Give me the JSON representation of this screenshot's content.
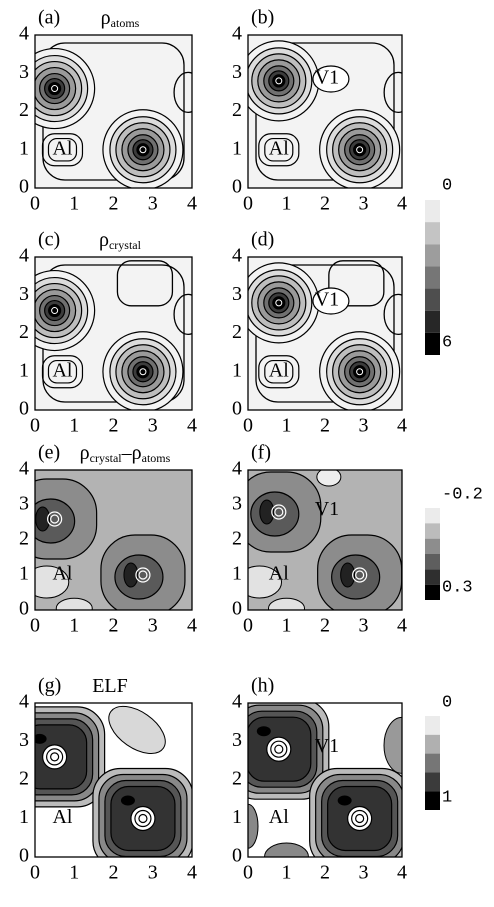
{
  "panels": [
    {
      "label": "(a)",
      "title": [
        {
          "text": "ρ"
        },
        {
          "sub": "atoms"
        }
      ],
      "xticks": [
        0,
        1,
        2,
        3,
        4
      ],
      "yticks": [
        0,
        1,
        2,
        3,
        4
      ],
      "annotations": [
        "Al"
      ]
    },
    {
      "label": "(b)",
      "xticks": [
        0,
        1,
        2,
        3,
        4
      ],
      "yticks": [
        0,
        1,
        2,
        3,
        4
      ],
      "annotations": [
        "Al",
        "V1"
      ]
    },
    {
      "label": "(c)",
      "title": [
        {
          "text": "ρ"
        },
        {
          "sub": "crystal"
        }
      ],
      "xticks": [
        0,
        1,
        2,
        3,
        4
      ],
      "yticks": [
        0,
        1,
        2,
        3,
        4
      ],
      "annotations": [
        "Al"
      ]
    },
    {
      "label": "(d)",
      "xticks": [
        0,
        1,
        2,
        3,
        4
      ],
      "yticks": [
        0,
        1,
        2,
        3,
        4
      ],
      "annotations": [
        "Al",
        "V1"
      ]
    },
    {
      "label": "(e)",
      "title": [
        {
          "text": "ρ"
        },
        {
          "sub": "crystal"
        },
        {
          "text": "–ρ"
        },
        {
          "sub": "atoms"
        }
      ],
      "xticks": [
        0,
        1,
        2,
        3,
        4
      ],
      "yticks": [
        0,
        1,
        2,
        3,
        4
      ],
      "annotations": [
        "Al"
      ]
    },
    {
      "label": "(f)",
      "xticks": [
        0,
        1,
        2,
        3,
        4
      ],
      "yticks": [
        0,
        1,
        2,
        3,
        4
      ],
      "annotations": [
        "Al",
        "V1"
      ]
    },
    {
      "label": "(g)",
      "title": [
        {
          "text": "ELF"
        }
      ],
      "xticks": [
        0,
        1,
        2,
        3,
        4
      ],
      "yticks": [
        0,
        1,
        2,
        3,
        4
      ],
      "annotations": [
        "Al"
      ]
    },
    {
      "label": "(h)",
      "xticks": [
        0,
        1,
        2,
        3,
        4
      ],
      "yticks": [
        0,
        1,
        2,
        3,
        4
      ],
      "annotations": [
        "Al",
        "V1"
      ]
    }
  ],
  "colorbars": [
    {
      "top": 0,
      "bottom": 6
    },
    {
      "top": -0.2,
      "bottom": 0.3
    },
    {
      "top": 0,
      "bottom": 1
    }
  ]
}
